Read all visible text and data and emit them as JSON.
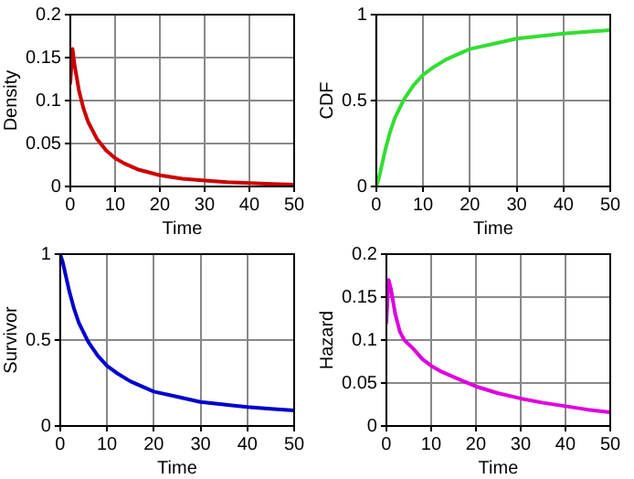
{
  "chart_data": [
    {
      "type": "line",
      "xlabel": "Time",
      "ylabel": "Density",
      "x": [
        0,
        0.5,
        1,
        2,
        3,
        4,
        6,
        8,
        10,
        12,
        15,
        20,
        25,
        30,
        35,
        40,
        45,
        50
      ],
      "series": [
        {
          "color": "#cc0000",
          "values": [
            0.12,
            0.16,
            0.14,
            0.11,
            0.09,
            0.075,
            0.055,
            0.042,
            0.033,
            0.027,
            0.02,
            0.013,
            0.009,
            0.007,
            0.005,
            0.004,
            0.003,
            0.002
          ]
        }
      ],
      "xlim": [
        0,
        50
      ],
      "xticks": [
        0,
        10,
        20,
        30,
        40,
        50
      ],
      "ylim": [
        0,
        0.2
      ],
      "yticks": [
        0,
        0.05,
        0.1,
        0.15,
        0.2
      ],
      "grid": true,
      "marker": "none",
      "line_style": "solid"
    },
    {
      "type": "line",
      "xlabel": "Time",
      "ylabel": "CDF",
      "x": [
        0,
        0.5,
        1,
        2,
        3,
        4,
        6,
        8,
        10,
        12,
        15,
        20,
        25,
        30,
        35,
        40,
        45,
        50
      ],
      "series": [
        {
          "color": "#33dd33",
          "values": [
            0,
            0.04,
            0.1,
            0.22,
            0.32,
            0.4,
            0.51,
            0.59,
            0.65,
            0.69,
            0.74,
            0.8,
            0.83,
            0.86,
            0.875,
            0.89,
            0.9,
            0.91
          ]
        }
      ],
      "xlim": [
        0,
        50
      ],
      "xticks": [
        0,
        10,
        20,
        30,
        40,
        50
      ],
      "ylim": [
        0,
        1
      ],
      "yticks": [
        0,
        0.5,
        1
      ],
      "grid": true,
      "marker": "none",
      "line_style": "solid"
    },
    {
      "type": "line",
      "xlabel": "Time",
      "ylabel": "Survivor",
      "x": [
        0,
        0.5,
        1,
        2,
        3,
        4,
        6,
        8,
        10,
        12,
        15,
        20,
        25,
        30,
        35,
        40,
        45,
        50
      ],
      "series": [
        {
          "color": "#0000cc",
          "values": [
            1,
            0.96,
            0.9,
            0.78,
            0.68,
            0.6,
            0.49,
            0.41,
            0.35,
            0.31,
            0.26,
            0.2,
            0.17,
            0.14,
            0.125,
            0.11,
            0.1,
            0.09
          ]
        }
      ],
      "xlim": [
        0,
        50
      ],
      "xticks": [
        0,
        10,
        20,
        30,
        40,
        50
      ],
      "ylim": [
        0,
        1
      ],
      "yticks": [
        0,
        0.5,
        1
      ],
      "grid": true,
      "marker": "none",
      "line_style": "solid"
    },
    {
      "type": "line",
      "xlabel": "Time",
      "ylabel": "Hazard",
      "x": [
        0,
        0.5,
        1,
        2,
        3,
        4,
        6,
        8,
        10,
        12,
        15,
        20,
        25,
        30,
        35,
        40,
        45,
        50
      ],
      "series": [
        {
          "color": "#dd00dd",
          "values": [
            0.12,
            0.17,
            0.16,
            0.13,
            0.11,
            0.1,
            0.09,
            0.078,
            0.07,
            0.064,
            0.057,
            0.046,
            0.038,
            0.032,
            0.027,
            0.023,
            0.019,
            0.016
          ]
        }
      ],
      "xlim": [
        0,
        50
      ],
      "xticks": [
        0,
        10,
        20,
        30,
        40,
        50
      ],
      "ylim": [
        0,
        0.2
      ],
      "yticks": [
        0,
        0.05,
        0.1,
        0.15,
        0.2
      ],
      "grid": true,
      "marker": "none",
      "line_style": "solid"
    }
  ]
}
